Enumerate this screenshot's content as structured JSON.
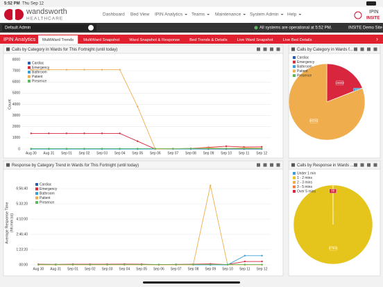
{
  "status_bar": {
    "time": "5:52 PM",
    "date": "Thu Sep 12"
  },
  "header": {
    "logo": "wandsworth",
    "logo_sub": "HEALTHCARE",
    "nav": [
      "Dashboard",
      "Bed View",
      "IPIN Analytics",
      "Teams",
      "Maintenance",
      "System Admin",
      "Help"
    ],
    "brand": "IPIN",
    "brand_sub": "INSITE"
  },
  "toolbar": {
    "user": "Default Admin",
    "status": "All systems are operational at 5:52 PM.",
    "site": "INSITE Demo Site"
  },
  "tabs": {
    "section": "IPIN Analytics",
    "items": [
      "MultiWard Trends",
      "MultiWard Snapshot",
      "Ward Snapshot & Response",
      "Bed Trends & Details",
      "Live Ward Snapshot",
      "Live Bed Details"
    ],
    "active": 0
  },
  "chart_data": [
    {
      "type": "line",
      "title": "Calls by Category in Wards for This Fortnight (until today)",
      "ylabel": [
        "Count"
      ],
      "categories": [
        "Aug 30",
        "Aug 31",
        "Sep 01",
        "Sep 02",
        "Sep 03",
        "Sep 04",
        "Sep 05",
        "Sep 06",
        "Sep 07",
        "Sep 08",
        "Sep 09",
        "Sep 10",
        "Sep 11",
        "Sep 12"
      ],
      "series": [
        {
          "name": "Cardiac",
          "color": "#2b5fad",
          "values": [
            0,
            0,
            0,
            0,
            0,
            0,
            0,
            0,
            0,
            0,
            0,
            0,
            0,
            0
          ]
        },
        {
          "name": "Emergency",
          "color": "#d7263d",
          "values": [
            1400,
            1400,
            1400,
            1400,
            1400,
            1400,
            700,
            0,
            20,
            60,
            150,
            250,
            180,
            200
          ]
        },
        {
          "name": "Bathroom",
          "color": "#3a9fd8",
          "values": [
            0,
            0,
            0,
            0,
            0,
            0,
            0,
            0,
            0,
            0,
            20,
            30,
            50,
            30
          ]
        },
        {
          "name": "Patient",
          "color": "#f0ad4e",
          "values": [
            7100,
            7100,
            7100,
            7100,
            7100,
            7100,
            3800,
            0,
            20,
            50,
            100,
            60,
            100,
            80
          ]
        },
        {
          "name": "Presence",
          "color": "#5cb85c",
          "values": [
            40,
            40,
            40,
            40,
            40,
            40,
            40,
            40,
            40,
            40,
            40,
            40,
            40,
            40
          ]
        }
      ],
      "ylim": [
        0,
        8000
      ],
      "yticks": [
        0,
        1000,
        2000,
        3000,
        4000,
        5000,
        6000,
        7000,
        8000
      ],
      "grid": true,
      "legend": "top-left"
    },
    {
      "type": "pie",
      "title": "Calls by Category in Wards f...",
      "categories": [
        "Cardiac",
        "Emergency",
        "Bathroom",
        "Patient",
        "Presence"
      ],
      "values": [
        70,
        15602,
        132,
        66592,
        0
      ],
      "colors": [
        "#2b5fad",
        "#d7263d",
        "#3a9fd8",
        "#f0ad4e",
        "#5cb85c"
      ],
      "legend": "top-left"
    },
    {
      "type": "line",
      "title": "Response by Category Trend in Wards for This Fortnight (until today)",
      "ylabel": [
        "Average Response Time",
        "(hh:mm:ss)"
      ],
      "categories": [
        "Aug 30",
        "Aug 31",
        "Sep 01",
        "Sep 02",
        "Sep 03",
        "Sep 04",
        "Sep 05",
        "Sep 06",
        "Sep 07",
        "Sep 08",
        "Sep 09",
        "Sep 10",
        "Sep 11",
        "Sep 12"
      ],
      "series": [
        {
          "name": "Cardiac",
          "color": "#2b5fad",
          "values": [
            0,
            0,
            0,
            0,
            0,
            0,
            0,
            0,
            0,
            0,
            0,
            0,
            0,
            0
          ]
        },
        {
          "name": "Emergency",
          "color": "#d7263d",
          "values": [
            200,
            150,
            200,
            200,
            200,
            250,
            200,
            100,
            150,
            200,
            300,
            100,
            1100,
            1100
          ]
        },
        {
          "name": "Bathroom",
          "color": "#3a9fd8",
          "values": [
            0,
            0,
            0,
            0,
            0,
            0,
            0,
            0,
            0,
            0,
            0,
            0,
            3000,
            3000
          ]
        },
        {
          "name": "Patient",
          "color": "#f0ad4e",
          "values": [
            0,
            0,
            0,
            0,
            0,
            0,
            0,
            0,
            0,
            0,
            26000,
            0,
            0,
            0
          ]
        },
        {
          "name": "Presence",
          "color": "#5cb85c",
          "values": [
            100,
            100,
            100,
            100,
            100,
            100,
            100,
            100,
            100,
            100,
            100,
            100,
            100,
            100
          ]
        }
      ],
      "ylim": [
        0,
        27500
      ],
      "yticks": [
        {
          "value": 0,
          "label": "00:00"
        },
        {
          "value": 5000,
          "label": "1:23:20"
        },
        {
          "value": 10000,
          "label": "2:46:40"
        },
        {
          "value": 15000,
          "label": "4:10:00"
        },
        {
          "value": 20000,
          "label": "5:33:20"
        },
        {
          "value": 25000,
          "label": "6:56:40"
        }
      ],
      "grid": true,
      "legend": "top-left"
    },
    {
      "type": "pie",
      "title": "Calls by Response in Wards ...",
      "categories": [
        "Under 1 min",
        "1 - 2 mins",
        "2 - 3 mins",
        "3 - 5 mins",
        "Over 5 mins"
      ],
      "values": [
        0,
        57905,
        0,
        0,
        88
      ],
      "colors": [
        "#3a9fd8",
        "#e5c51c",
        "#f0ad4e",
        "#f07a3a",
        "#d7263d"
      ],
      "legend": "top-left"
    }
  ]
}
